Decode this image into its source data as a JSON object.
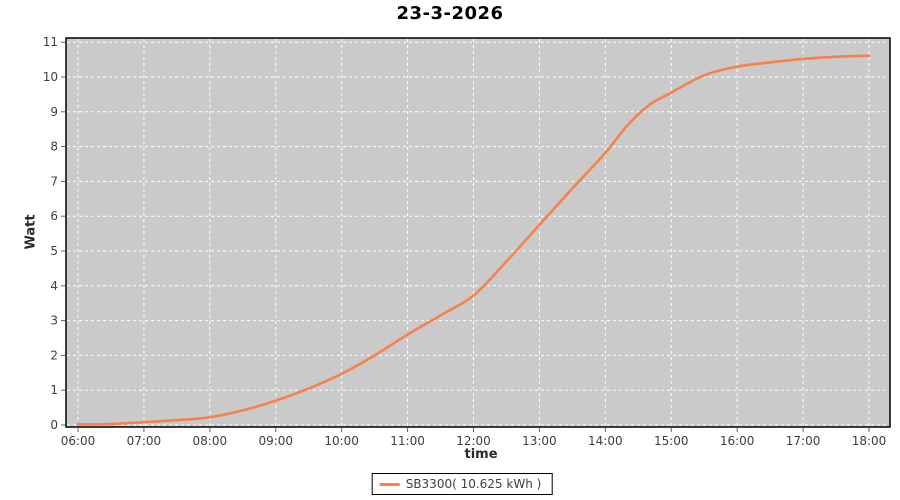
{
  "chart_data": {
    "type": "line",
    "title": "23-3-2026",
    "xlabel": "time",
    "ylabel": "Watt",
    "x_tick_labels": [
      "06:00",
      "07:00",
      "08:00",
      "09:00",
      "10:00",
      "11:00",
      "12:00",
      "13:00",
      "14:00",
      "15:00",
      "16:00",
      "17:00",
      "18:00"
    ],
    "y_ticks": [
      0,
      1,
      2,
      3,
      4,
      5,
      6,
      7,
      8,
      9,
      10,
      11
    ],
    "ylim": [
      0,
      11
    ],
    "xlim": [
      "06:00",
      "18:00"
    ],
    "grid": "white dashed lines, hourly vertical and unit horizontal, on",
    "legend_position": "bottom-center",
    "plot_bg": "#cacaca",
    "series": [
      {
        "name": "SB3300( 10.625 kWh )",
        "color": "#F5824B",
        "description": "cumulative energy curve, time in decimal hours vs value",
        "points": [
          [
            6.0,
            0.02
          ],
          [
            6.5,
            0.03
          ],
          [
            7.0,
            0.08
          ],
          [
            7.5,
            0.14
          ],
          [
            8.0,
            0.22
          ],
          [
            8.5,
            0.42
          ],
          [
            9.0,
            0.7
          ],
          [
            9.5,
            1.05
          ],
          [
            10.0,
            1.47
          ],
          [
            10.5,
            2.0
          ],
          [
            11.0,
            2.6
          ],
          [
            11.5,
            3.15
          ],
          [
            12.0,
            3.72
          ],
          [
            12.5,
            4.7
          ],
          [
            13.0,
            5.75
          ],
          [
            13.5,
            6.8
          ],
          [
            14.0,
            7.82
          ],
          [
            14.33,
            8.6
          ],
          [
            14.67,
            9.2
          ],
          [
            15.0,
            9.55
          ],
          [
            15.5,
            10.05
          ],
          [
            16.0,
            10.3
          ],
          [
            16.5,
            10.42
          ],
          [
            17.0,
            10.52
          ],
          [
            17.5,
            10.58
          ],
          [
            18.0,
            10.61
          ]
        ]
      }
    ]
  },
  "colors": {
    "line": "#F5824B",
    "plot_background": "#cacaca",
    "gridline": "#ffffff",
    "plot_border": "#000000",
    "tick_text": "#3f3f3f"
  }
}
